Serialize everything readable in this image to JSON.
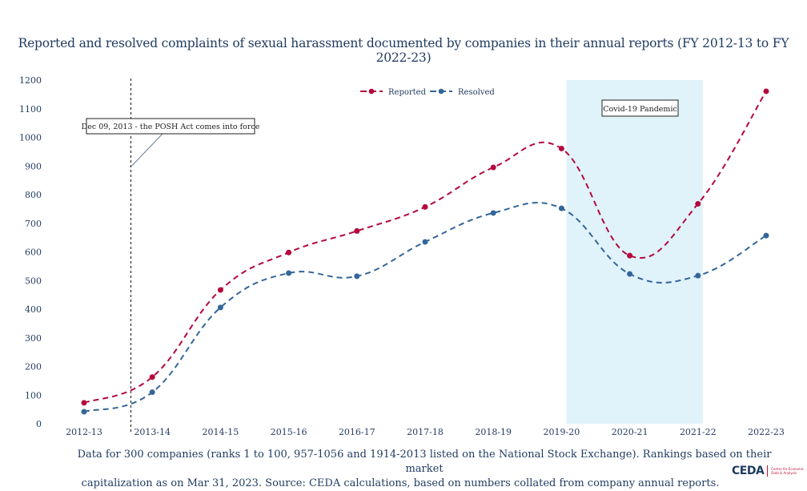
{
  "chart_data": {
    "type": "line",
    "title": "Reported and resolved complaints of sexual harassment documented by companies in their annual reports (FY 2012-13 to FY 2022-23)",
    "xlabel": "",
    "ylabel": "",
    "categories": [
      "2012-13",
      "2013-14",
      "2014-15",
      "2015-16",
      "2016-17",
      "2017-18",
      "2018-19",
      "2019-20",
      "2020-21",
      "2021-22",
      "2022-23"
    ],
    "series": [
      {
        "name": "Reported",
        "color": "#b5083c",
        "line_style": "dashed",
        "values": [
          73,
          163,
          467,
          598,
          673,
          757,
          895,
          961,
          587,
          768,
          1161
        ]
      },
      {
        "name": "Resolved",
        "color": "#336699",
        "line_style": "dashed",
        "values": [
          42,
          110,
          406,
          526,
          515,
          635,
          736,
          752,
          523,
          517,
          657
        ]
      }
    ],
    "ylim": [
      0,
      1200
    ],
    "yticks": [
      0,
      100,
      200,
      300,
      400,
      500,
      600,
      700,
      800,
      900,
      1000,
      1100,
      1200
    ],
    "grid": false,
    "legend": {
      "placement": "top-center",
      "entries": [
        "Reported",
        "Resolved"
      ]
    },
    "annotations": [
      {
        "text": "Dec 09, 2013 - the POSH Act comes into force",
        "type": "vertical-line",
        "x_position": "between 2012-13 and 2013-14",
        "points_to_value": 900
      },
      {
        "text": "Covid-19 Pandemic",
        "type": "shaded-region",
        "x_range": [
          "2019-20",
          "2021-22"
        ],
        "color": "#e0f2fa"
      }
    ]
  },
  "footnote": {
    "line1": "Data for 300 companies (ranks 1 to 100, 957-1056 and 1914-2013 listed on the National Stock Exchange). Rankings based on their market",
    "line2": "capitalization as on Mar 31, 2023. Source: CEDA calculations, based on numbers collated from company annual reports."
  },
  "logo": {
    "mark": "CEDA",
    "subtitle_line1": "Centre for Economic",
    "subtitle_line2": "Data & Analysis"
  }
}
